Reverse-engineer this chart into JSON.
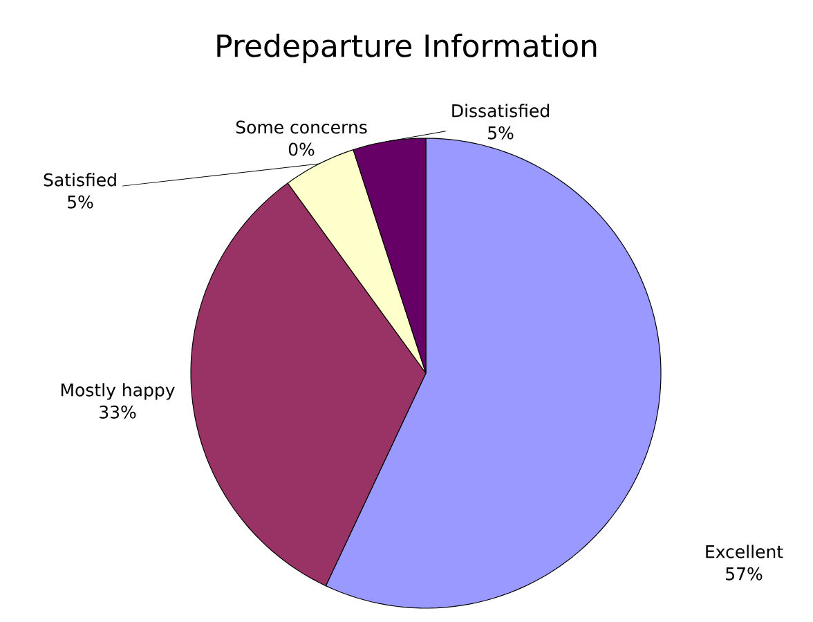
{
  "chart_data": {
    "type": "pie",
    "title": "Predeparture Information",
    "categories": [
      "Excellent",
      "Mostly happy",
      "Satisfied",
      "Some concerns",
      "Dissatisfied"
    ],
    "values": [
      57,
      33,
      5,
      0,
      5
    ],
    "value_labels": [
      "57%",
      "33%",
      "5%",
      "0%",
      "5%"
    ],
    "colors": [
      "#9999ff",
      "#993366",
      "#ffffcc",
      "#ccffff",
      "#660066"
    ]
  }
}
